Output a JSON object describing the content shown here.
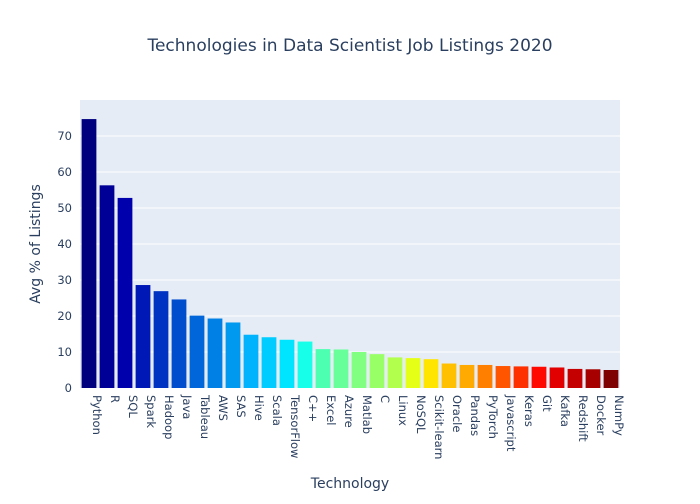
{
  "chart_data": {
    "type": "bar",
    "title": "Technologies in Data Scientist Job Listings 2020",
    "xlabel": "Technology",
    "ylabel": "Avg % of Listings",
    "ylim": [
      0,
      80
    ],
    "yticks": [
      0,
      10,
      20,
      30,
      40,
      50,
      60,
      70
    ],
    "grid": true,
    "categories": [
      "Python",
      "R",
      "SQL",
      "Spark",
      "Hadoop",
      "Java",
      "Tableau",
      "AWS",
      "SAS",
      "Hive",
      "Scala",
      "TensorFlow",
      "C++",
      "Excel",
      "Azure",
      "Matlab",
      "C",
      "Linux",
      "NoSQL",
      "Scikit-learn",
      "Oracle",
      "Pandas",
      "PyTorch",
      "Javascript",
      "Keras",
      "Git",
      "Kafka",
      "Redshift",
      "Docker",
      "NumPy"
    ],
    "values": [
      74.7,
      56.3,
      52.8,
      28.6,
      26.9,
      24.6,
      20.1,
      19.3,
      18.2,
      14.8,
      14.1,
      13.4,
      12.9,
      10.8,
      10.7,
      10.0,
      9.4,
      8.5,
      8.3,
      8.0,
      6.8,
      6.4,
      6.4,
      6.1,
      6.0,
      5.9,
      5.7,
      5.3,
      5.2,
      5.0
    ],
    "colors": [
      "#00007f",
      "#000096",
      "#0000ad",
      "#0018b6",
      "#0033c2",
      "#004dce",
      "#0066d9",
      "#0080e5",
      "#0099f0",
      "#00b3fc",
      "#00ccff",
      "#00e5ff",
      "#17ffe8",
      "#4dffb1",
      "#66ff99",
      "#80ff80",
      "#99ff66",
      "#b3ff4d",
      "#e5ff17",
      "#ffe500",
      "#ffc000",
      "#ffaa00",
      "#ff8000",
      "#ff5500",
      "#ff3000",
      "#ff0800",
      "#e20000",
      "#c40000",
      "#a60000",
      "#7f0000"
    ]
  }
}
